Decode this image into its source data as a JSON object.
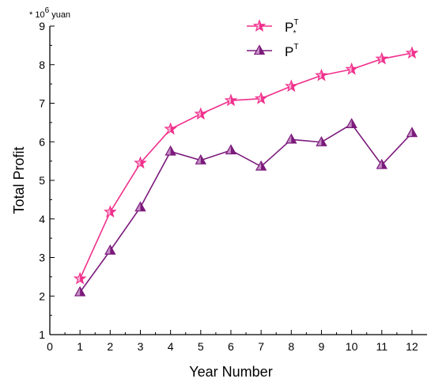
{
  "chart_data": {
    "type": "line",
    "xlabel": "Year Number",
    "ylabel": "Total Profit",
    "unit_label": {
      "prefix": "* 10",
      "exponent": "6",
      "suffix": " yuan"
    },
    "xlim": [
      0,
      12.5
    ],
    "ylim": [
      1,
      9
    ],
    "x_ticks": [
      0,
      1,
      2,
      3,
      4,
      5,
      6,
      7,
      8,
      9,
      10,
      11,
      12
    ],
    "y_ticks": [
      1,
      2,
      3,
      4,
      5,
      6,
      7,
      8,
      9
    ],
    "grid": false,
    "legend_position": "top-right",
    "x": [
      1,
      2,
      3,
      4,
      5,
      6,
      7,
      8,
      9,
      10,
      11,
      12
    ],
    "series": [
      {
        "name_base": "P",
        "name_sup": "T",
        "name_sub": "*",
        "marker": "star",
        "color": "#f0308c",
        "fill": "#f9b3d4",
        "values": [
          2.45,
          4.18,
          5.45,
          6.33,
          6.72,
          7.07,
          7.12,
          7.44,
          7.72,
          7.88,
          8.15,
          8.3
        ]
      },
      {
        "name_base": "P",
        "name_sup": "T",
        "name_sub": "",
        "marker": "triangle",
        "color": "#7b1a7b",
        "fill": "#c58fc5",
        "values": [
          2.1,
          3.18,
          4.3,
          5.75,
          5.52,
          5.78,
          5.36,
          6.06,
          5.99,
          6.46,
          5.4,
          6.23
        ]
      }
    ]
  }
}
